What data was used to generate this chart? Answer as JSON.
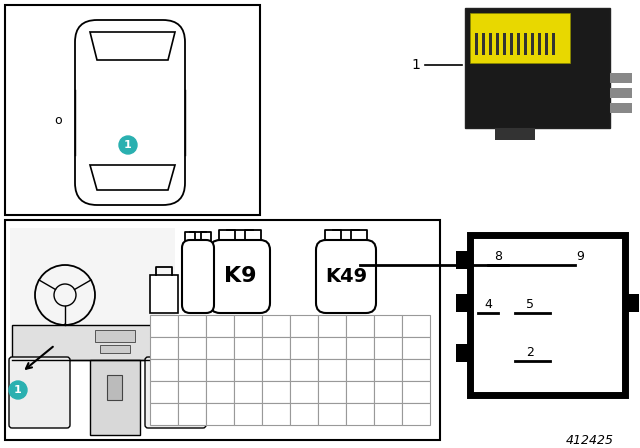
{
  "bg_color": "#ffffff",
  "teal_color": "#2ab0b0",
  "part_number": "412425",
  "border_lw": 1.5,
  "grid_color": "#999999",
  "relay_pin_labels": [
    "8",
    "9",
    "4",
    "5",
    "2"
  ],
  "relay_k_labels": [
    "K9",
    "K49"
  ]
}
